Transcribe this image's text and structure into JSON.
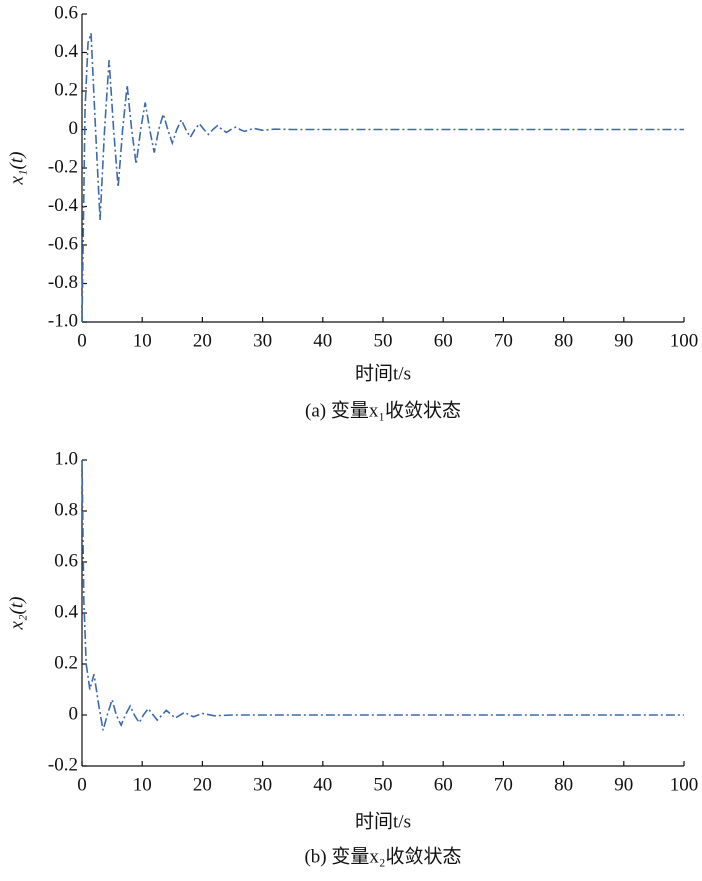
{
  "chart_data": [
    {
      "type": "line",
      "ylabel": "x₁(t)",
      "xlabel": "时间t/s",
      "caption": "(a) 变量x₁收敛状态",
      "color": "#3d6aae",
      "xlim": [
        0,
        100
      ],
      "xticks": [
        0,
        10,
        20,
        30,
        40,
        50,
        60,
        70,
        80,
        90,
        100
      ],
      "ylim": [
        -1,
        0.6
      ],
      "yticks": [
        0.6,
        0.4,
        0.2,
        0,
        -0.2,
        -0.4,
        -0.6,
        -0.8,
        {
          "value": -1,
          "label": "-1.0"
        }
      ],
      "x": [
        0,
        0.5,
        1,
        1.5,
        2.25,
        3,
        3.75,
        4.5,
        5.25,
        6,
        6.75,
        7.5,
        8.25,
        9,
        9.75,
        10.5,
        11.25,
        12,
        12.75,
        13.5,
        14.25,
        15,
        15.75,
        16.5,
        17.25,
        18,
        18.75,
        19.5,
        20.25,
        21,
        21.75,
        22.5,
        23.25,
        24,
        24.75,
        25.5,
        26.25,
        27,
        28.5,
        30,
        32,
        35,
        40,
        50,
        60,
        70,
        80,
        90,
        100
      ],
      "values": [
        -1.0,
        0.1,
        0.45,
        0.5,
        0,
        -0.47,
        0,
        0.36,
        0,
        -0.3,
        0,
        0.23,
        0,
        -0.18,
        0,
        0.14,
        0,
        -0.12,
        0,
        0.08,
        0,
        -0.07,
        0,
        0.05,
        0,
        -0.04,
        0,
        0.03,
        0,
        -0.025,
        0,
        0.02,
        0,
        -0.015,
        0,
        0.012,
        0,
        -0.01,
        0.006,
        -0.004,
        0.002,
        0,
        0,
        0,
        0,
        0,
        0,
        0,
        0
      ]
    },
    {
      "type": "line",
      "ylabel": "x₂(t)",
      "xlabel": "时间t/s",
      "caption": "(b) 变量x₂收敛状态",
      "color": "#3d6aae",
      "xlim": [
        0,
        100
      ],
      "xticks": [
        0,
        10,
        20,
        30,
        40,
        50,
        60,
        70,
        80,
        90,
        100
      ],
      "ylim": [
        -0.2,
        1
      ],
      "yticks": [
        {
          "value": 1,
          "label": "1.0"
        },
        0.8,
        0.6,
        0.4,
        0.2,
        0,
        -0.2
      ],
      "x": [
        0,
        0.3,
        0.7,
        1.3,
        2,
        2.7,
        3.5,
        4.2,
        5,
        5.7,
        6.5,
        7.2,
        8,
        8.7,
        9.5,
        10.2,
        11,
        12.5,
        14,
        15.5,
        17,
        18.5,
        20,
        22,
        25,
        30,
        40,
        50,
        60,
        70,
        80,
        90,
        100
      ],
      "values": [
        1.0,
        0.45,
        0.2,
        0.1,
        0.16,
        0.05,
        -0.06,
        0,
        0.06,
        0,
        -0.04,
        0,
        0.035,
        0,
        -0.03,
        0,
        0.025,
        -0.02,
        0.018,
        -0.012,
        0.01,
        -0.007,
        0.006,
        -0.003,
        0,
        0,
        0,
        0,
        0,
        0,
        0,
        0,
        0
      ]
    }
  ]
}
